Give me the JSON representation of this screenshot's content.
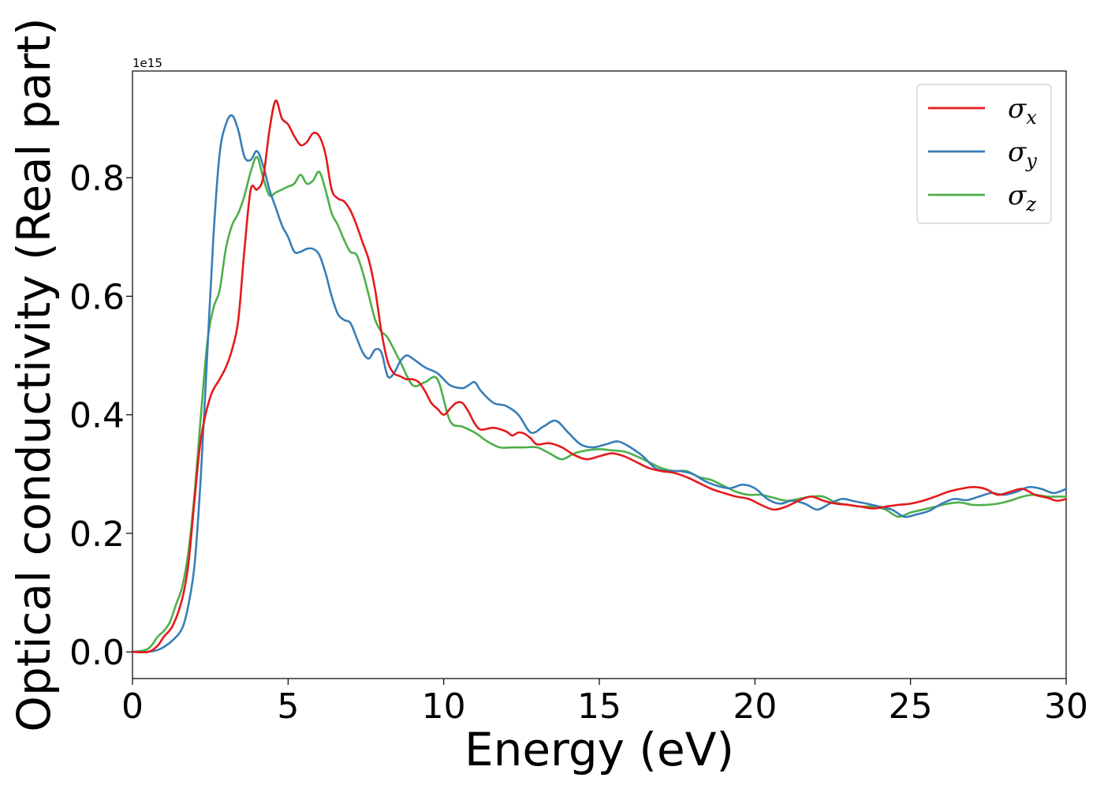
{
  "chart_data": {
    "type": "line",
    "title": "",
    "xlabel": "Energy (eV)",
    "ylabel": "Optical conductivity (Real part)",
    "y_offset_text": "1e15",
    "y_scale": 1000000000000000.0,
    "xlim": [
      0,
      30
    ],
    "ylim": [
      -0.045,
      0.98
    ],
    "x_ticks": [
      0,
      5,
      10,
      15,
      20,
      25,
      30
    ],
    "x_tick_labels": [
      "0",
      "5",
      "10",
      "15",
      "20",
      "25",
      "30"
    ],
    "y_ticks": [
      0.0,
      0.2,
      0.4,
      0.6,
      0.8
    ],
    "y_tick_labels": [
      "0.0",
      "0.2",
      "0.4",
      "0.6",
      "0.8"
    ],
    "grid": false,
    "legend_position": "top-right",
    "series": [
      {
        "name": "σx",
        "symbol": "σ",
        "subscript": "x",
        "color": "#e41a1c",
        "x": [
          0,
          0.5,
          0.8,
          1.0,
          1.3,
          1.6,
          1.8,
          2.0,
          2.2,
          2.5,
          2.8,
          3.0,
          3.2,
          3.4,
          3.6,
          3.8,
          4.0,
          4.2,
          4.4,
          4.6,
          4.8,
          5.0,
          5.2,
          5.4,
          5.6,
          5.8,
          6.0,
          6.2,
          6.4,
          6.6,
          6.8,
          7.0,
          7.2,
          7.4,
          7.6,
          7.8,
          8.0,
          8.2,
          8.4,
          8.6,
          8.8,
          9.0,
          9.2,
          9.4,
          9.6,
          9.8,
          10.0,
          10.2,
          10.4,
          10.6,
          10.8,
          11.0,
          11.2,
          11.6,
          12.0,
          12.2,
          12.4,
          12.6,
          12.8,
          13.0,
          13.4,
          13.8,
          14.2,
          14.6,
          15.0,
          15.4,
          15.8,
          16.2,
          16.6,
          17.0,
          17.4,
          17.8,
          18.2,
          18.6,
          19.0,
          19.4,
          19.8,
          20.2,
          20.6,
          21.0,
          21.4,
          21.8,
          22.2,
          22.6,
          23.0,
          23.4,
          23.8,
          24.2,
          24.6,
          25.0,
          25.4,
          25.8,
          26.2,
          26.6,
          27.0,
          27.4,
          27.8,
          28.2,
          28.6,
          29.0,
          29.4,
          29.7,
          30.0
        ],
        "y": [
          0.0,
          0.0,
          0.01,
          0.025,
          0.045,
          0.09,
          0.15,
          0.26,
          0.36,
          0.43,
          0.46,
          0.48,
          0.51,
          0.56,
          0.68,
          0.78,
          0.78,
          0.8,
          0.88,
          0.93,
          0.9,
          0.89,
          0.87,
          0.855,
          0.86,
          0.875,
          0.87,
          0.84,
          0.78,
          0.765,
          0.76,
          0.745,
          0.72,
          0.69,
          0.66,
          0.61,
          0.54,
          0.49,
          0.47,
          0.465,
          0.46,
          0.46,
          0.455,
          0.44,
          0.42,
          0.41,
          0.4,
          0.41,
          0.42,
          0.42,
          0.405,
          0.385,
          0.375,
          0.378,
          0.372,
          0.365,
          0.37,
          0.368,
          0.36,
          0.35,
          0.352,
          0.345,
          0.332,
          0.325,
          0.33,
          0.335,
          0.33,
          0.32,
          0.31,
          0.305,
          0.302,
          0.295,
          0.285,
          0.275,
          0.268,
          0.262,
          0.258,
          0.248,
          0.24,
          0.245,
          0.255,
          0.262,
          0.255,
          0.25,
          0.248,
          0.245,
          0.242,
          0.245,
          0.248,
          0.25,
          0.255,
          0.262,
          0.27,
          0.275,
          0.278,
          0.275,
          0.265,
          0.27,
          0.275,
          0.265,
          0.26,
          0.255,
          0.258
        ]
      },
      {
        "name": "σy",
        "symbol": "σ",
        "subscript": "y",
        "color": "#377eb8",
        "x": [
          0,
          0.5,
          0.8,
          1.0,
          1.3,
          1.6,
          1.8,
          2.0,
          2.2,
          2.4,
          2.6,
          2.8,
          3.0,
          3.2,
          3.4,
          3.6,
          3.8,
          4.0,
          4.2,
          4.4,
          4.6,
          4.8,
          5.0,
          5.2,
          5.4,
          5.6,
          5.8,
          6.0,
          6.2,
          6.4,
          6.6,
          6.8,
          7.0,
          7.2,
          7.4,
          7.6,
          7.8,
          8.0,
          8.2,
          8.4,
          8.6,
          8.8,
          9.0,
          9.4,
          9.8,
          10.2,
          10.6,
          10.8,
          11.0,
          11.2,
          11.6,
          12.0,
          12.4,
          12.8,
          13.2,
          13.6,
          14.0,
          14.4,
          14.8,
          15.2,
          15.6,
          16.0,
          16.4,
          16.8,
          17.2,
          17.6,
          18.0,
          18.4,
          18.8,
          19.2,
          19.6,
          20.0,
          20.4,
          20.8,
          21.2,
          21.6,
          22.0,
          22.4,
          22.8,
          23.2,
          23.6,
          24.0,
          24.4,
          24.8,
          25.2,
          25.6,
          26.0,
          26.4,
          26.8,
          27.2,
          27.6,
          28.0,
          28.4,
          28.8,
          29.2,
          29.6,
          30.0
        ],
        "y": [
          0.0,
          0.0,
          0.003,
          0.008,
          0.02,
          0.04,
          0.08,
          0.15,
          0.3,
          0.5,
          0.7,
          0.84,
          0.89,
          0.905,
          0.88,
          0.835,
          0.83,
          0.845,
          0.82,
          0.78,
          0.75,
          0.72,
          0.7,
          0.675,
          0.675,
          0.68,
          0.68,
          0.67,
          0.64,
          0.6,
          0.57,
          0.56,
          0.555,
          0.53,
          0.505,
          0.495,
          0.51,
          0.505,
          0.465,
          0.47,
          0.49,
          0.5,
          0.495,
          0.48,
          0.47,
          0.45,
          0.445,
          0.45,
          0.455,
          0.44,
          0.42,
          0.415,
          0.4,
          0.37,
          0.38,
          0.39,
          0.37,
          0.35,
          0.345,
          0.35,
          0.355,
          0.345,
          0.33,
          0.31,
          0.305,
          0.305,
          0.3,
          0.288,
          0.28,
          0.276,
          0.282,
          0.276,
          0.258,
          0.25,
          0.255,
          0.25,
          0.24,
          0.25,
          0.258,
          0.254,
          0.25,
          0.245,
          0.24,
          0.228,
          0.232,
          0.238,
          0.25,
          0.258,
          0.256,
          0.262,
          0.268,
          0.265,
          0.27,
          0.278,
          0.275,
          0.268,
          0.275
        ]
      },
      {
        "name": "σz",
        "symbol": "σ",
        "subscript": "z",
        "color": "#4daf4a",
        "x": [
          0,
          0.4,
          0.6,
          0.8,
          1.0,
          1.2,
          1.4,
          1.6,
          1.8,
          2.0,
          2.2,
          2.4,
          2.6,
          2.8,
          3.0,
          3.2,
          3.4,
          3.6,
          3.8,
          4.0,
          4.2,
          4.4,
          4.6,
          4.8,
          5.0,
          5.2,
          5.4,
          5.6,
          5.8,
          6.0,
          6.2,
          6.4,
          6.6,
          6.8,
          7.0,
          7.2,
          7.4,
          7.6,
          7.8,
          8.0,
          8.2,
          8.6,
          9.0,
          9.4,
          9.8,
          10.2,
          10.6,
          11.0,
          11.4,
          11.8,
          12.2,
          12.6,
          13.0,
          13.4,
          13.8,
          14.2,
          14.6,
          15.0,
          15.4,
          15.8,
          16.2,
          16.6,
          17.0,
          17.4,
          17.8,
          18.2,
          18.6,
          19.0,
          19.4,
          19.8,
          20.2,
          20.6,
          21.0,
          21.4,
          21.8,
          22.2,
          22.6,
          23.0,
          23.4,
          23.8,
          24.2,
          24.6,
          25.0,
          25.4,
          25.8,
          26.2,
          26.6,
          27.0,
          27.4,
          27.8,
          28.2,
          28.6,
          29.0,
          29.4,
          29.7,
          30.0
        ],
        "y": [
          0.0,
          0.003,
          0.01,
          0.025,
          0.035,
          0.05,
          0.08,
          0.11,
          0.17,
          0.27,
          0.4,
          0.52,
          0.58,
          0.61,
          0.68,
          0.72,
          0.74,
          0.77,
          0.81,
          0.835,
          0.8,
          0.77,
          0.775,
          0.78,
          0.785,
          0.79,
          0.805,
          0.79,
          0.795,
          0.81,
          0.78,
          0.74,
          0.72,
          0.695,
          0.675,
          0.67,
          0.64,
          0.6,
          0.56,
          0.54,
          0.53,
          0.49,
          0.45,
          0.455,
          0.46,
          0.39,
          0.38,
          0.37,
          0.355,
          0.345,
          0.345,
          0.345,
          0.345,
          0.335,
          0.325,
          0.335,
          0.34,
          0.342,
          0.34,
          0.338,
          0.33,
          0.32,
          0.31,
          0.305,
          0.305,
          0.295,
          0.29,
          0.28,
          0.27,
          0.265,
          0.265,
          0.26,
          0.255,
          0.258,
          0.262,
          0.262,
          0.252,
          0.248,
          0.245,
          0.245,
          0.24,
          0.228,
          0.235,
          0.24,
          0.245,
          0.25,
          0.252,
          0.248,
          0.248,
          0.25,
          0.255,
          0.262,
          0.265,
          0.262,
          0.262,
          0.262
        ]
      }
    ]
  }
}
